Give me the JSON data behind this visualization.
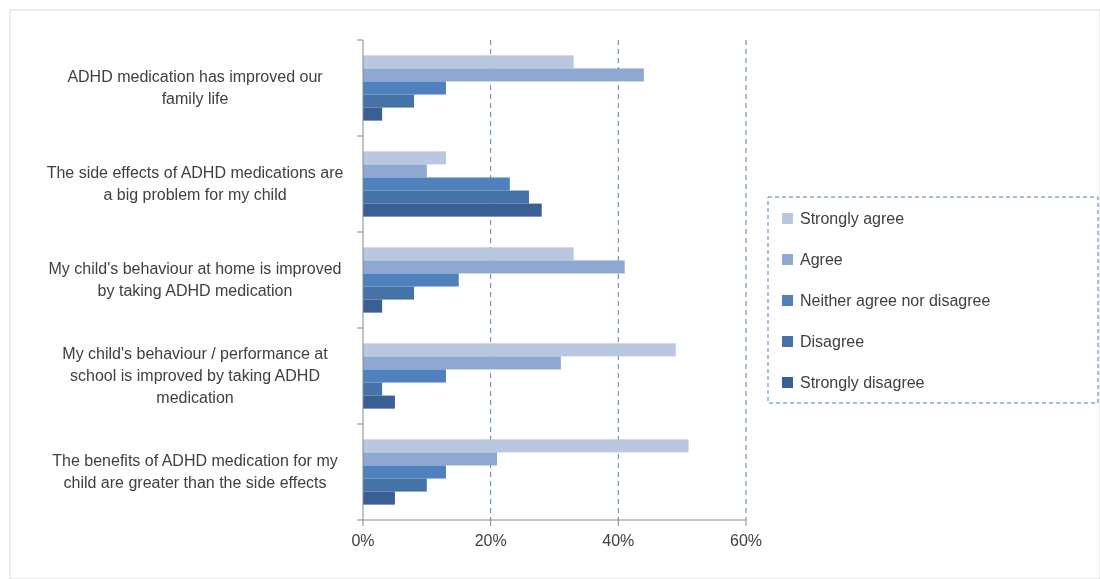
{
  "chart_data": {
    "type": "bar",
    "orientation": "horizontal",
    "categories": [
      "ADHD medication has improved our family life",
      "The side effects of ADHD medications are a big problem for my child",
      "My child's behaviour at home is improved by taking ADHD medication",
      "My child's behaviour / performance at school is improved by taking ADHD medication",
      "The benefits of ADHD medication for my child are greater than the side effects"
    ],
    "series": [
      {
        "name": "Strongly agree",
        "color": "#b9c7e0",
        "values": [
          33,
          13,
          33,
          49,
          51
        ]
      },
      {
        "name": "Agree",
        "color": "#8fa8d2",
        "values": [
          44,
          10,
          41,
          31,
          21
        ]
      },
      {
        "name": "Neither agree nor disagree",
        "color": "#4f81bd",
        "values": [
          13,
          23,
          15,
          13,
          13
        ]
      },
      {
        "name": "Disagree",
        "color": "#4572a7",
        "values": [
          8,
          26,
          8,
          3,
          10
        ]
      },
      {
        "name": "Strongly disagree",
        "color": "#3a5f95",
        "values": [
          3,
          28,
          3,
          5,
          5
        ]
      }
    ],
    "xlim": [
      0,
      60
    ],
    "xticks": [
      {
        "value": 0,
        "label": "0%"
      },
      {
        "value": 20,
        "label": "20%"
      },
      {
        "value": 40,
        "label": "40%"
      },
      {
        "value": 60,
        "label": "60%"
      }
    ],
    "grid": "x",
    "legend": "right"
  }
}
